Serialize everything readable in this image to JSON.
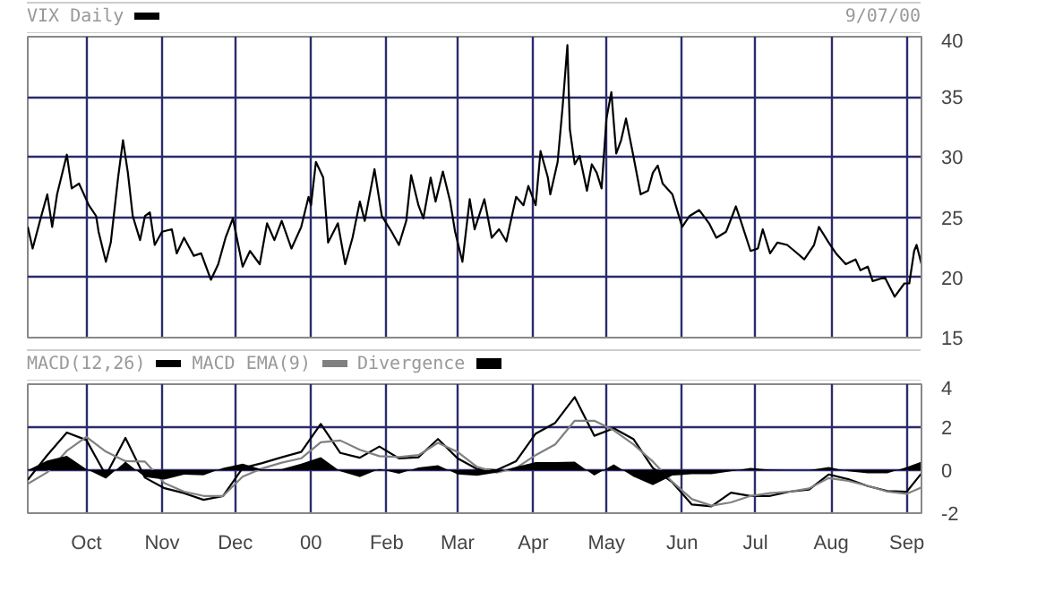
{
  "chart_data": [
    {
      "type": "line",
      "annotations": [
        "9/07/00"
      ],
      "legend": "top",
      "grid": true,
      "tick_labels": "y",
      "xlim": [
        "1999-09-07",
        "2000-09-07"
      ],
      "xticks": [
        {
          "value": "1999-10-01",
          "label": null
        },
        {
          "value": "1999-11-01",
          "label": null
        },
        {
          "value": "1999-12-01",
          "label": null
        },
        {
          "value": "2000-01-01",
          "label": null
        },
        {
          "value": "2000-02-01",
          "label": null
        },
        {
          "value": "2000-03-01",
          "label": null
        },
        {
          "value": "2000-04-01",
          "label": null
        },
        {
          "value": "2000-05-01",
          "label": null
        },
        {
          "value": "2000-06-01",
          "label": null
        },
        {
          "value": "2000-07-01",
          "label": null
        },
        {
          "value": "2000-08-01",
          "label": null
        },
        {
          "value": "2000-09-01",
          "label": null
        }
      ],
      "ylim": [
        15,
        40
      ],
      "yticks": [
        15,
        20,
        25,
        30,
        35,
        40
      ],
      "series": [
        {
          "name": "VIX Daily",
          "color": "#000000",
          "x": [
            "1999-09-07",
            "1999-09-09",
            "1999-09-12",
            "1999-09-15",
            "1999-09-17",
            "1999-09-19",
            "1999-09-23",
            "1999-09-25",
            "1999-09-28",
            "1999-10-02",
            "1999-10-05",
            "1999-10-06",
            "1999-10-09",
            "1999-10-11",
            "1999-10-14",
            "1999-10-16",
            "1999-10-18",
            "1999-10-20",
            "1999-10-23",
            "1999-10-25",
            "1999-10-27",
            "1999-10-29",
            "1999-11-01",
            "1999-11-05",
            "1999-11-07",
            "1999-11-10",
            "1999-11-14",
            "1999-11-17",
            "1999-11-21",
            "1999-11-24",
            "1999-11-27",
            "1999-11-30",
            "1999-12-02",
            "1999-12-04",
            "1999-12-07",
            "1999-12-11",
            "1999-12-14",
            "1999-12-17",
            "1999-12-20",
            "1999-12-24",
            "1999-12-28",
            "1999-12-31",
            "2000-01-01",
            "2000-01-03",
            "2000-01-06",
            "2000-01-08",
            "2000-01-12",
            "2000-01-15",
            "2000-01-18",
            "2000-01-21",
            "2000-01-23",
            "2000-01-27",
            "2000-01-30",
            "2000-02-03",
            "2000-02-06",
            "2000-02-09",
            "2000-02-11",
            "2000-02-14",
            "2000-02-16",
            "2000-02-19",
            "2000-02-21",
            "2000-02-24",
            "2000-02-27",
            "2000-02-29",
            "2000-03-03",
            "2000-03-06",
            "2000-03-08",
            "2000-03-12",
            "2000-03-15",
            "2000-03-18",
            "2000-03-21",
            "2000-03-25",
            "2000-03-28",
            "2000-03-30",
            "2000-04-02",
            "2000-04-04",
            "2000-04-07",
            "2000-04-08",
            "2000-04-11",
            "2000-04-13",
            "2000-04-15",
            "2000-04-16",
            "2000-04-18",
            "2000-04-20",
            "2000-04-23",
            "2000-04-25",
            "2000-04-27",
            "2000-04-29",
            "2000-05-01",
            "2000-05-03",
            "2000-05-05",
            "2000-05-07",
            "2000-05-09",
            "2000-05-12",
            "2000-05-15",
            "2000-05-18",
            "2000-05-20",
            "2000-05-22",
            "2000-05-24",
            "2000-05-28",
            "2000-06-01",
            "2000-06-04",
            "2000-06-08",
            "2000-06-12",
            "2000-06-15",
            "2000-06-19",
            "2000-06-23",
            "2000-06-25",
            "2000-06-29",
            "2000-07-02",
            "2000-07-04",
            "2000-07-07",
            "2000-07-10",
            "2000-07-14",
            "2000-07-17",
            "2000-07-21",
            "2000-07-25",
            "2000-07-27",
            "2000-07-31",
            "2000-08-03",
            "2000-08-07",
            "2000-08-11",
            "2000-08-13",
            "2000-08-16",
            "2000-08-18",
            "2000-08-23",
            "2000-08-27",
            "2000-08-31",
            "2000-09-02",
            "2000-09-04",
            "2000-09-05",
            "2000-09-07"
          ],
          "values": [
            24.2,
            22.4,
            24.7,
            26.9,
            24.2,
            26.9,
            30.2,
            27.4,
            27.8,
            26.0,
            25.1,
            23.8,
            21.3,
            22.9,
            28.3,
            31.4,
            28.7,
            25.1,
            23.1,
            25.1,
            25.4,
            22.7,
            23.8,
            24.0,
            22.0,
            23.3,
            21.8,
            22.0,
            19.8,
            21.1,
            23.3,
            24.9,
            22.9,
            20.9,
            22.2,
            21.1,
            24.5,
            23.1,
            24.7,
            22.4,
            24.2,
            26.7,
            26.0,
            29.6,
            28.3,
            22.9,
            24.5,
            21.1,
            23.3,
            26.3,
            24.7,
            29.0,
            25.1,
            23.8,
            22.7,
            24.7,
            28.5,
            26.0,
            24.9,
            28.3,
            26.3,
            28.8,
            26.3,
            23.8,
            21.3,
            26.5,
            24.0,
            26.5,
            23.3,
            24.0,
            23.0,
            26.7,
            26.0,
            27.6,
            26.0,
            30.5,
            28.3,
            26.9,
            29.6,
            34.1,
            39.3,
            32.3,
            29.4,
            30.1,
            27.2,
            29.4,
            28.7,
            27.4,
            33.2,
            35.4,
            30.3,
            31.4,
            33.2,
            30.1,
            26.9,
            27.2,
            28.7,
            29.3,
            27.8,
            26.9,
            24.2,
            25.1,
            25.6,
            24.5,
            23.3,
            23.8,
            25.9,
            24.7,
            22.2,
            22.4,
            24.0,
            22.0,
            22.9,
            22.7,
            22.2,
            21.5,
            22.7,
            24.2,
            22.9,
            22.0,
            21.1,
            21.5,
            20.6,
            20.9,
            19.7,
            20.0,
            18.4,
            19.5,
            19.5,
            22.2,
            22.7,
            21.1
          ]
        }
      ]
    },
    {
      "type": "line",
      "legend": "top",
      "grid": true,
      "xlim": [
        "1999-09-07",
        "2000-09-07"
      ],
      "xticks": [
        {
          "value": "1999-10-01",
          "label": "Oct"
        },
        {
          "value": "1999-11-01",
          "label": "Nov"
        },
        {
          "value": "1999-12-01",
          "label": "Dec"
        },
        {
          "value": "2000-01-01",
          "label": "00"
        },
        {
          "value": "2000-02-01",
          "label": "Feb"
        },
        {
          "value": "2000-03-01",
          "label": "Mar"
        },
        {
          "value": "2000-04-01",
          "label": "Apr"
        },
        {
          "value": "2000-05-01",
          "label": "May"
        },
        {
          "value": "2000-06-01",
          "label": "Jun"
        },
        {
          "value": "2000-07-01",
          "label": "Jul"
        },
        {
          "value": "2000-08-01",
          "label": "Aug"
        },
        {
          "value": "2000-09-01",
          "label": "Sep"
        }
      ],
      "ylim": [
        -2,
        4
      ],
      "yticks": [
        -2,
        0,
        2,
        4
      ],
      "x": [
        "1999-09-07",
        "1999-09-15",
        "1999-09-23",
        "1999-10-01",
        "1999-10-09",
        "1999-10-17",
        "1999-10-25",
        "1999-11-02",
        "1999-11-10",
        "1999-11-18",
        "1999-11-26",
        "1999-12-04",
        "1999-12-12",
        "1999-12-20",
        "1999-12-28",
        "2000-01-05",
        "2000-01-13",
        "2000-01-21",
        "2000-01-29",
        "2000-02-06",
        "2000-02-14",
        "2000-02-22",
        "2000-03-01",
        "2000-03-09",
        "2000-03-17",
        "2000-03-25",
        "2000-04-02",
        "2000-04-10",
        "2000-04-18",
        "2000-04-26",
        "2000-05-04",
        "2000-05-12",
        "2000-05-20",
        "2000-05-28",
        "2000-06-05",
        "2000-06-13",
        "2000-06-21",
        "2000-06-29",
        "2000-07-07",
        "2000-07-15",
        "2000-07-23",
        "2000-07-31",
        "2000-08-08",
        "2000-08-16",
        "2000-08-24",
        "2000-09-01",
        "2000-09-07"
      ],
      "series": [
        {
          "name": "MACD(12,26)",
          "color": "#000000",
          "values": [
            -0.45,
            0.7,
            1.75,
            1.4,
            -0.24,
            1.5,
            -0.35,
            -0.84,
            -1.07,
            -1.38,
            -1.2,
            0.1,
            0.33,
            0.6,
            0.85,
            2.15,
            0.8,
            0.58,
            1.1,
            0.55,
            0.6,
            1.45,
            0.55,
            0.05,
            0,
            0.42,
            1.7,
            2.2,
            3.4,
            1.6,
            1.95,
            1.45,
            0.1,
            -0.57,
            -1.6,
            -1.68,
            -1.05,
            -1.2,
            -1.2,
            -1.0,
            -0.9,
            -0.2,
            -0.42,
            -0.74,
            -0.97,
            -1.0,
            -0.15
          ]
        },
        {
          "name": "MACD EMA(9)",
          "color": "#808080",
          "values": [
            -0.64,
            -0.1,
            0.9,
            1.55,
            0.86,
            0.42,
            0.4,
            -0.6,
            -1.0,
            -1.2,
            -1.2,
            -0.3,
            0.08,
            0.35,
            0.55,
            1.3,
            1.38,
            0.95,
            0.65,
            0.61,
            0.7,
            1.27,
            0.85,
            0.15,
            -0.11,
            0.1,
            0.7,
            1.2,
            2.3,
            2.3,
            1.85,
            1.2,
            0.4,
            -0.55,
            -1.35,
            -1.65,
            -1.5,
            -1.2,
            -1.07,
            -1.0,
            -0.85,
            -0.37,
            -0.5,
            -0.73,
            -1.0,
            -1.1,
            -0.8
          ]
        },
        {
          "name": "Divergence",
          "type": "area",
          "color": "#000000",
          "values": [
            0,
            0.45,
            0.67,
            0.05,
            -0.4,
            0.4,
            -0.32,
            -0.44,
            -0.21,
            -0.24,
            0.1,
            0.3,
            0.03,
            0.05,
            0.3,
            0.6,
            -0.05,
            -0.32,
            0.05,
            -0.17,
            0.13,
            0.23,
            -0.2,
            -0.26,
            -0.11,
            0.16,
            0.38,
            0.37,
            0.4,
            -0.25,
            0.27,
            -0.3,
            -0.7,
            -0.25,
            -0.19,
            -0.19,
            -0.05,
            0.1,
            0.02,
            0,
            0,
            0.15,
            -0.05,
            -0.15,
            -0.15,
            0.15,
            0.4
          ]
        }
      ]
    }
  ]
}
